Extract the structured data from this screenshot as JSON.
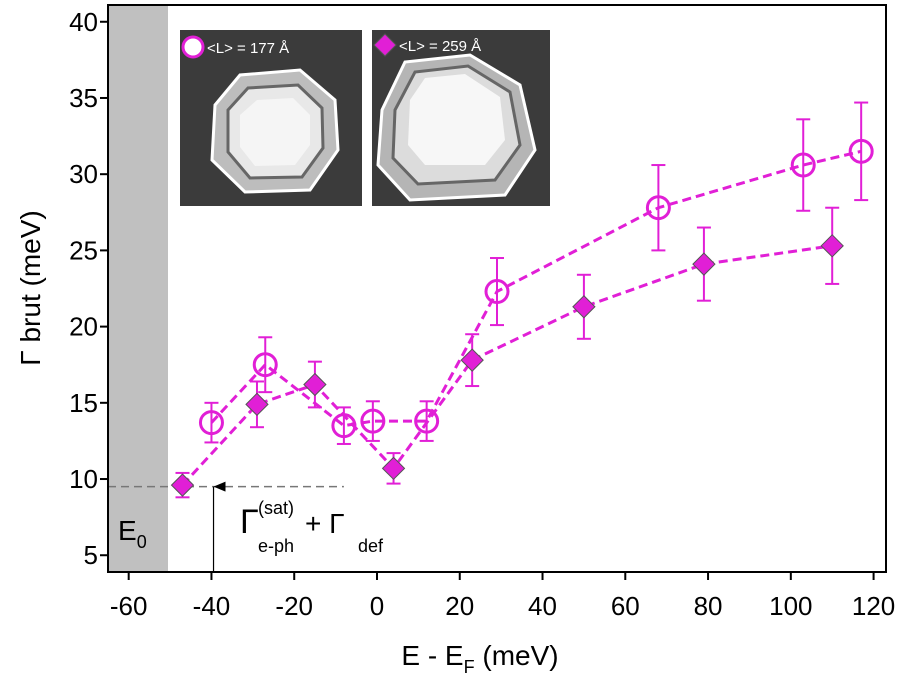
{
  "chart_data": {
    "type": "line",
    "xlabel": "E - E",
    "xlabel_sub": "F",
    "xlabel_tail": " (meV)",
    "ylabel": "Γ brut (meV)",
    "xlim": [
      -65,
      123
    ],
    "ylim": [
      3.9,
      41.1
    ],
    "xticks": [
      -60,
      -40,
      -20,
      0,
      20,
      40,
      60,
      80,
      100,
      120
    ],
    "yticks": [
      5,
      10,
      15,
      20,
      25,
      30,
      35,
      40
    ],
    "shaded_region": [
      -65,
      -50.5
    ],
    "reference_line": {
      "y": 9.5,
      "x": [
        -65,
        -8
      ]
    },
    "arrow_x": -39.5,
    "annotations": {
      "e0": {
        "text": "E",
        "sub": "0"
      },
      "gamma": {
        "g1": "Γ",
        "sup1": "(sat)",
        "sub1": "e-ph",
        "plus": "+ Γ",
        "sub2": "def"
      }
    },
    "series": [
      {
        "name": "<L> = 177 Å",
        "marker": "circle",
        "color": "#e11fd6",
        "x": [
          -40,
          -27,
          -8,
          -1,
          12,
          29,
          68,
          103,
          117
        ],
        "values": [
          13.7,
          17.5,
          13.5,
          13.8,
          13.8,
          22.3,
          27.8,
          30.6,
          31.5
        ],
        "errors": [
          1.3,
          1.8,
          1.2,
          1.3,
          1.3,
          2.2,
          2.8,
          3.0,
          3.2
        ]
      },
      {
        "name": "<L> = 259 Å",
        "marker": "diamond",
        "color": "#e11fd6",
        "x": [
          -47,
          -29,
          -15,
          4,
          23,
          50,
          79,
          110
        ],
        "values": [
          9.6,
          14.9,
          16.2,
          10.7,
          17.8,
          21.3,
          24.1,
          25.3
        ],
        "errors": [
          0.8,
          1.5,
          1.5,
          1.0,
          1.7,
          2.1,
          2.4,
          2.5
        ]
      }
    ]
  }
}
